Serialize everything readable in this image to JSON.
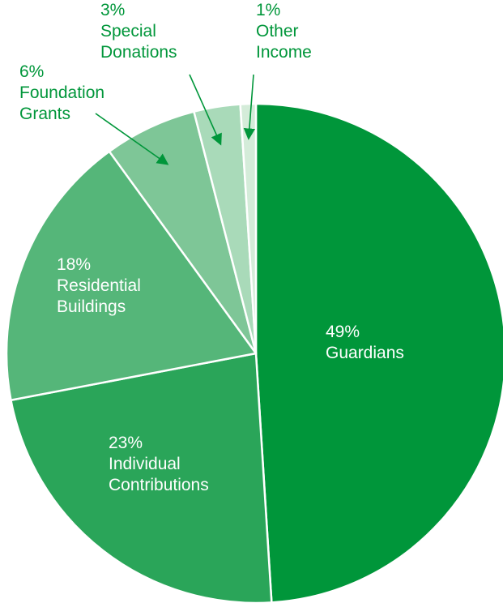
{
  "chart_data": {
    "type": "pie",
    "slices": [
      {
        "pct": "49%",
        "name": [
          "Guardians"
        ],
        "value": 49,
        "color": "#00963a",
        "text_color": "#ffffff",
        "outside": false
      },
      {
        "pct": "23%",
        "name": [
          "Individual",
          "Contributions"
        ],
        "value": 23,
        "color": "#2aa559",
        "text_color": "#ffffff",
        "outside": false
      },
      {
        "pct": "18%",
        "name": [
          "Residential",
          "Buildings"
        ],
        "value": 18,
        "color": "#55b679",
        "text_color": "#ffffff",
        "outside": false
      },
      {
        "pct": "6%",
        "name": [
          "Foundation",
          "Grants"
        ],
        "value": 6,
        "color": "#7ec697",
        "text_color": "#00963a",
        "outside": true
      },
      {
        "pct": "3%",
        "name": [
          "Special",
          "Donations"
        ],
        "value": 3,
        "color": "#a9dab9",
        "text_color": "#00963a",
        "outside": true
      },
      {
        "pct": "1%",
        "name": [
          "Other",
          "Income"
        ],
        "value": 1,
        "color": "#d4ecd9",
        "text_color": "#00963a",
        "outside": true
      }
    ],
    "arrow_color": "#00963a"
  }
}
